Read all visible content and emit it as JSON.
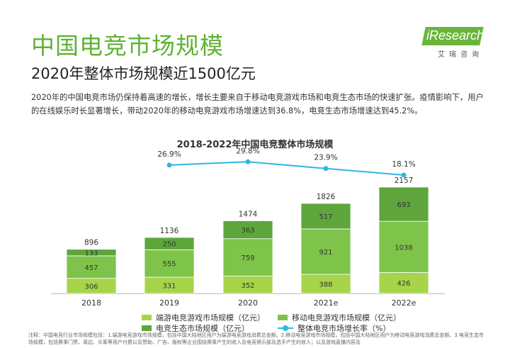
{
  "header": {
    "title": "中国电竞市场规模",
    "subtitle": "2020年整体市场规模近1500亿元"
  },
  "logo": {
    "brand": "iResearch",
    "sub": "艾瑞咨询"
  },
  "description": "2020年的中国电竞市场仍保持着高速的增长，增长主要来自于移动电竞游戏市场和电竞生态市场的快速扩张。疫情影响下，用户的在线娱乐时长显著增长，带动2020年的移动电竞游戏市场增速达到36.8%，电竞生态市场增速达到45.2%。",
  "footnote": "注释：中国电竞行业市场规模包括：1.端游电竞游戏市场规模，包括中国大陆地区用户为端游电竞游戏消费总金额。2.移动电竞游戏市场规模，包括中国大陆地区用户为移动电竞游戏消费总金额。3.电竞生态市场规模，包括赛事门票、周边、众筹等用户付费以及赞助、广告、版权等企业围绕赛事产生的收入及电竞俱乐部及选手产生的收入；以及游戏直播内容及",
  "colors": {
    "pc": "#a7d54a",
    "mobile": "#7ec34a",
    "eco": "#5ea63c",
    "line": "#2fb8e0"
  },
  "chart_data": {
    "type": "bar",
    "title": "2018-2022年中国电竞整体市场规模",
    "categories": [
      "2018",
      "2019",
      "2020",
      "2021e",
      "2022e"
    ],
    "series": [
      {
        "name": "端游电竞游戏市场规模（亿元）",
        "values": [
          306,
          331,
          352,
          388,
          426
        ]
      },
      {
        "name": "移动电竞游戏市场规模（亿元）",
        "values": [
          457,
          555,
          759,
          921,
          1038
        ]
      },
      {
        "name": "电竞生态市场规模（亿元）",
        "values": [
          133,
          250,
          363,
          517,
          693
        ]
      }
    ],
    "totals": [
      896,
      1136,
      1474,
      1826,
      2157
    ],
    "growth": {
      "name": "整体电竞市场增长率（%）",
      "values": [
        null,
        26.9,
        29.8,
        23.9,
        18.1
      ],
      "labels": [
        "",
        "26.9%",
        "29.8%",
        "23.9%",
        "18.1%"
      ]
    },
    "stacked": true,
    "legend_position": "bottom"
  }
}
